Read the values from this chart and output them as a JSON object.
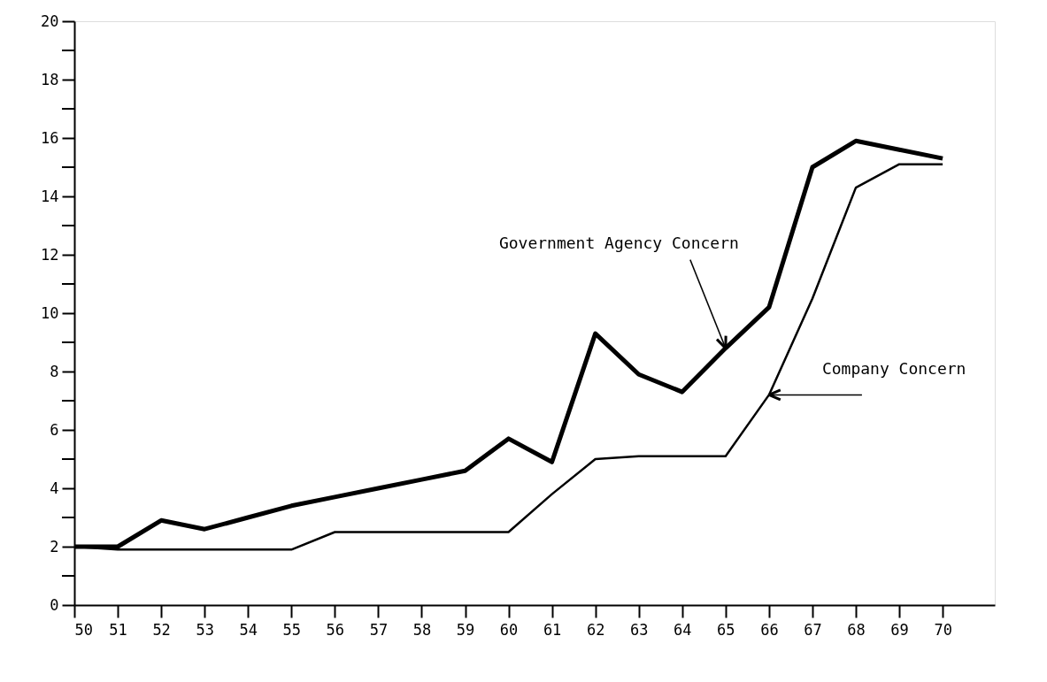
{
  "chart_data": {
    "type": "line",
    "x": [
      50,
      51,
      52,
      53,
      54,
      55,
      56,
      57,
      58,
      59,
      60,
      61,
      62,
      63,
      64,
      65,
      66,
      67,
      68,
      69,
      70
    ],
    "series": [
      {
        "name": "Government Agency Concern",
        "color": "#000000",
        "values": [
          2.0,
          2.0,
          2.9,
          2.6,
          3.0,
          3.4,
          3.7,
          4.0,
          4.3,
          4.6,
          5.7,
          4.9,
          9.3,
          7.9,
          7.3,
          8.8,
          10.2,
          15.0,
          15.9,
          15.6,
          15.3
        ]
      },
      {
        "name": "Company Concern",
        "color": "#000000",
        "values": [
          2.0,
          1.9,
          1.9,
          1.9,
          1.9,
          1.9,
          2.5,
          2.5,
          2.5,
          2.5,
          2.5,
          3.8,
          5.0,
          5.1,
          5.1,
          5.1,
          7.2,
          10.5,
          14.3,
          15.1,
          15.1
        ]
      }
    ],
    "xlim": [
      50,
      71.2
    ],
    "xticks": [
      50,
      51,
      52,
      53,
      54,
      55,
      56,
      57,
      58,
      59,
      60,
      61,
      62,
      63,
      64,
      65,
      66,
      67,
      68,
      69,
      70
    ],
    "ylim": [
      0,
      20
    ],
    "yticks": [
      0,
      {
        "value": 1,
        "label": null
      },
      2,
      {
        "value": 3,
        "label": null
      },
      4,
      {
        "value": 5,
        "label": null
      },
      6,
      {
        "value": 7,
        "label": null
      },
      8,
      {
        "value": 9,
        "label": null
      },
      10,
      {
        "value": 11,
        "label": null
      },
      12,
      {
        "value": 13,
        "label": null
      },
      14,
      {
        "value": 15,
        "label": null
      },
      16,
      {
        "value": 17,
        "label": null
      },
      18,
      {
        "value": 19,
        "label": null
      },
      20
    ],
    "grid": false,
    "legend": false,
    "marker": "none",
    "line_style": "solid"
  }
}
